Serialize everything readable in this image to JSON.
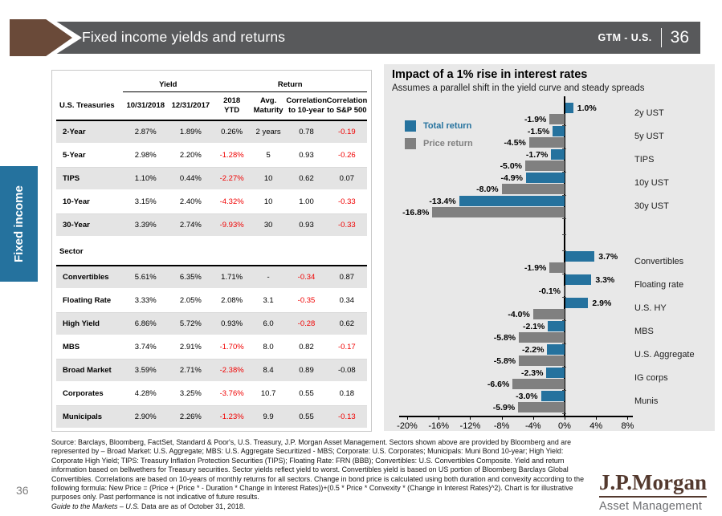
{
  "header": {
    "title": "Fixed income yields and returns",
    "gtm_label": "GTM - U.S.",
    "page_number": "36"
  },
  "sidebar": {
    "tab_label": "Fixed income"
  },
  "table": {
    "group_headers": {
      "yield": "Yield",
      "return": "Return"
    },
    "columns": [
      {
        "lines": [
          "U.S. Treasuries"
        ]
      },
      {
        "lines": [
          "10/31/2018"
        ]
      },
      {
        "lines": [
          "12/31/2017"
        ]
      },
      {
        "lines": [
          "2018",
          "YTD"
        ]
      },
      {
        "lines": [
          "Avg.",
          "Maturity"
        ]
      },
      {
        "lines": [
          "Correlation",
          "to 10-year"
        ]
      },
      {
        "lines": [
          "Correlation",
          "to S&P 500"
        ]
      }
    ],
    "treasury_rows": [
      {
        "label": "2-Year",
        "cells": [
          "2.87%",
          "1.89%",
          "0.26%",
          "2 years",
          "0.78",
          "-0.19"
        ]
      },
      {
        "label": "5-Year",
        "cells": [
          "2.98%",
          "2.20%",
          "-1.28%",
          "5",
          "0.93",
          "-0.26"
        ]
      },
      {
        "label": "TIPS",
        "cells": [
          "1.10%",
          "0.44%",
          "-2.27%",
          "10",
          "0.62",
          "0.07"
        ]
      },
      {
        "label": "10-Year",
        "cells": [
          "3.15%",
          "2.40%",
          "-4.32%",
          "10",
          "1.00",
          "-0.33"
        ]
      },
      {
        "label": "30-Year",
        "cells": [
          "3.39%",
          "2.74%",
          "-9.93%",
          "30",
          "0.93",
          "-0.33"
        ]
      }
    ],
    "section_label": "Sector",
    "sector_rows": [
      {
        "label": "Convertibles",
        "cells": [
          "5.61%",
          "6.35%",
          "1.71%",
          "-",
          "-0.34",
          "0.87"
        ]
      },
      {
        "label": "Floating Rate",
        "cells": [
          "3.33%",
          "2.05%",
          "2.08%",
          "3.1",
          "-0.35",
          "0.34"
        ]
      },
      {
        "label": "High Yield",
        "cells": [
          "6.86%",
          "5.72%",
          "0.93%",
          "6.0",
          "-0.28",
          "0.62"
        ]
      },
      {
        "label": "MBS",
        "cells": [
          "3.74%",
          "2.91%",
          "-1.70%",
          "8.0",
          "0.82",
          "-0.17"
        ]
      },
      {
        "label": "Broad Market",
        "cells": [
          "3.59%",
          "2.71%",
          "-2.38%",
          "8.4",
          "0.89",
          "-0.08"
        ],
        "black_negative_cols": [
          5
        ]
      },
      {
        "label": "Corporates",
        "cells": [
          "4.28%",
          "3.25%",
          "-3.76%",
          "10.7",
          "0.55",
          "0.18"
        ]
      },
      {
        "label": "Municipals",
        "cells": [
          "2.90%",
          "2.26%",
          "-1.23%",
          "9.9",
          "0.55",
          "-0.13"
        ]
      }
    ]
  },
  "chart_data": {
    "type": "bar",
    "orientation": "horizontal",
    "title": "Impact of a 1% rise in interest rates",
    "subtitle": "Assumes a parallel shift in the yield curve and steady spreads",
    "categories": [
      "2y UST",
      "5y UST",
      "TIPS",
      "10y UST",
      "30y UST",
      "Convertibles",
      "Floating rate",
      "U.S. HY",
      "MBS",
      "U.S. Aggregate",
      "IG corps",
      "Munis"
    ],
    "series": [
      {
        "name": "Total return",
        "color": "#25729e",
        "values": [
          1.0,
          -1.5,
          -1.7,
          -4.9,
          -13.4,
          3.7,
          3.3,
          2.9,
          -2.1,
          -2.2,
          -2.3,
          -3.0
        ]
      },
      {
        "name": "Price return",
        "color": "#808080",
        "values": [
          -1.9,
          -4.5,
          -5.0,
          -8.0,
          -16.8,
          -1.9,
          -0.1,
          -4.0,
          -5.8,
          -5.8,
          -6.6,
          -5.9
        ]
      }
    ],
    "group_break_after": "30y UST",
    "x_ticks": [
      "-20%",
      "-16%",
      "-12%",
      "-8%",
      "-4%",
      "0%",
      "4%",
      "8%"
    ],
    "xlim": [
      -22,
      9
    ],
    "value_labels": true,
    "legend_position": "top-left",
    "grid": false
  },
  "colors": {
    "header_gray": "#58595b",
    "chevron_brown": "#6a4a39",
    "accent_blue": "#25729e",
    "bar_gray": "#808080",
    "negative_red": "#f00000",
    "chart_bg": "#e8e8e8"
  },
  "footer": {
    "source_text": "Source: Barclays, Bloomberg, FactSet, Standard & Poor's, U.S. Treasury, J.P. Morgan Asset Management. Sectors shown above are provided by Bloomberg and are represented by – Broad Market: U.S. Aggregate; MBS: U.S. Aggregate Securitized - MBS; Corporate: U.S. Corporates; Municipals: Muni Bond 10-year; High Yield: Corporate High Yield; TIPS: Treasury Inflation Protection Securities (TIPS); Floating Rate: FRN (BBB); Convertibles: U.S. Convertibles Composite. Yield and return information based on bellwethers for Treasury securities. Sector yields reflect yield to worst. Convertibles yield is based on US portion of Bloomberg Barclays Global Convertibles. Correlations are based on 10-years of monthly returns for all sectors. Change in bond price is calculated using both duration and convexity according to the following formula: New Price = (Price + (Price * - Duration * Change in Interest Rates))+(0.5 * Price * Convexity * (Change in Interest Rates)^2). Chart is for illustrative purposes only. Past performance is not indicative of future results.",
    "gtm_italic": "Guide to the Markets – U.S.",
    "data_as_of": " Data are as of October 31, 2018.",
    "page_number": "36"
  },
  "logo": {
    "brand": "J.P.Morgan",
    "sub": "Asset Management"
  }
}
